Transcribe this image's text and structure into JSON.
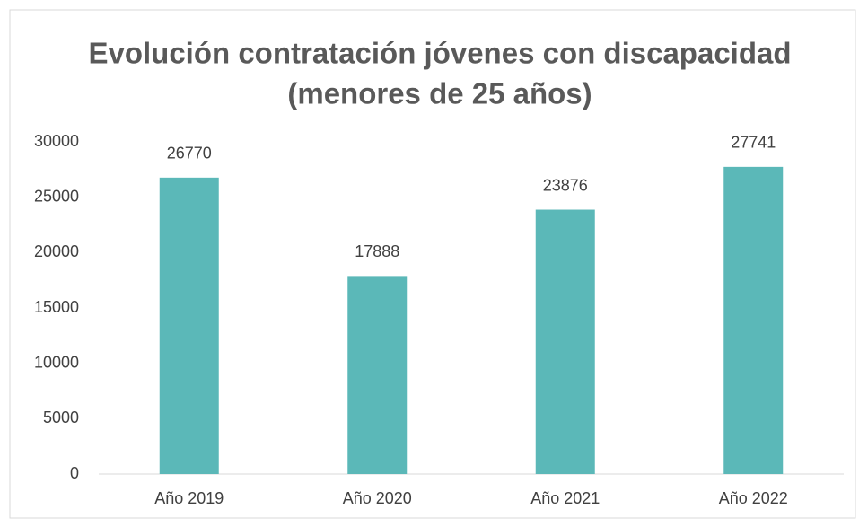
{
  "chart_data": {
    "type": "bar",
    "title": [
      "Evolución contratación jóvenes con discapacidad",
      "(menores de 25 años)"
    ],
    "categories": [
      "Año 2019",
      "Año 2020",
      "Año 2021",
      "Año 2022"
    ],
    "values": [
      26770,
      17888,
      23876,
      27741
    ],
    "color": "#5bb8b8",
    "ylim": [
      0,
      30000
    ],
    "yticks": [
      0,
      5000,
      10000,
      15000,
      20000,
      25000,
      30000
    ],
    "grid": false
  }
}
